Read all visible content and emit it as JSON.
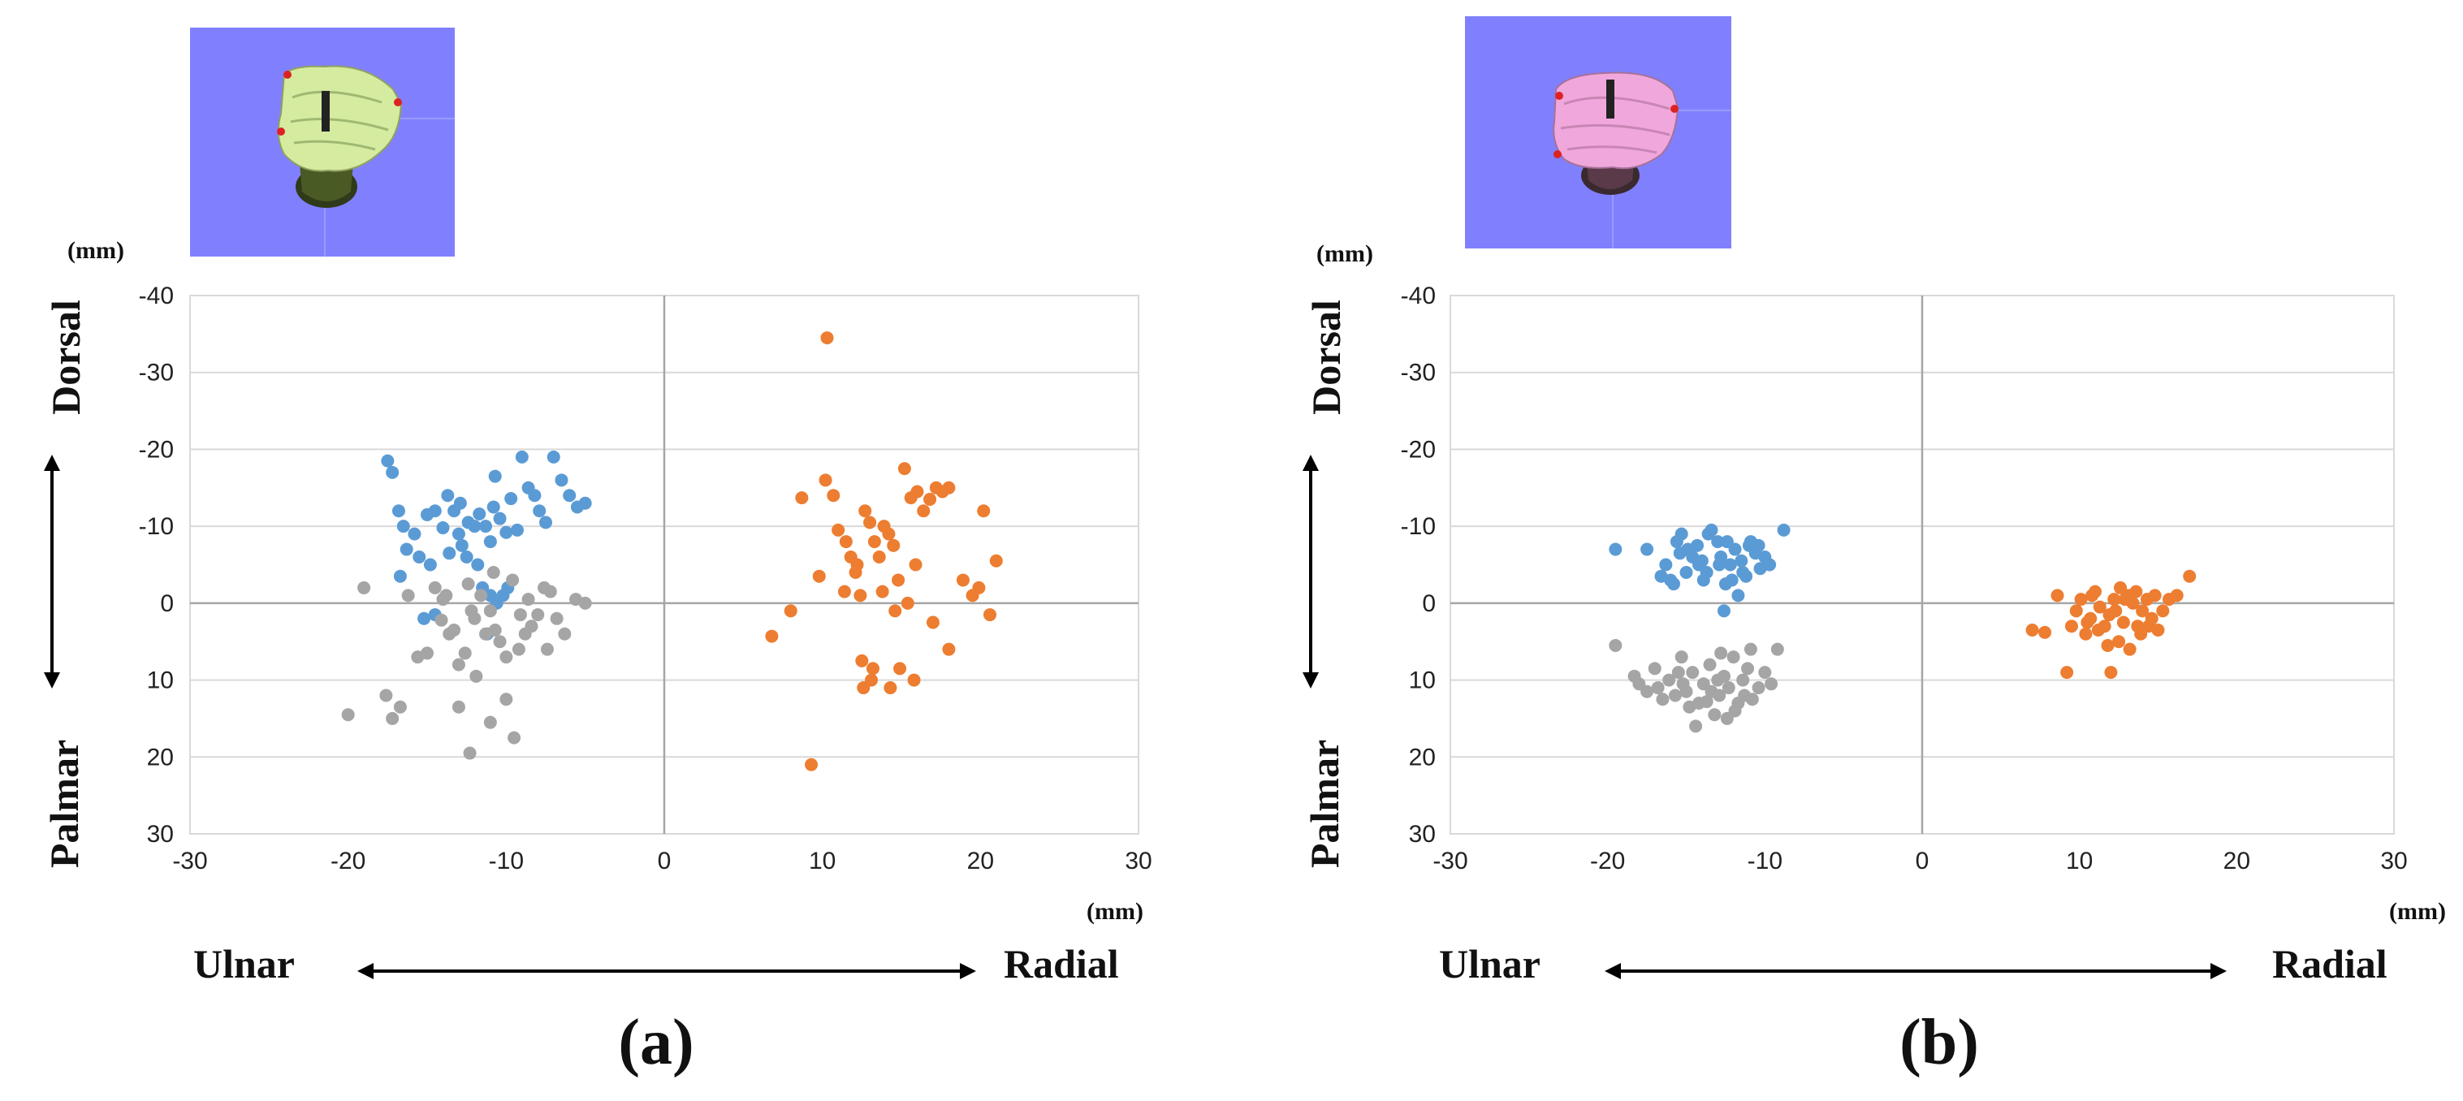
{
  "figure_captions": [
    "(a)",
    "(b)"
  ],
  "chart_data": [
    {
      "type": "scatter",
      "caption": "(a)",
      "thumbnail_background": "#8080ff",
      "thumbnail_bone_color": "#d4eba0",
      "x_unit": "(mm)",
      "y_unit": "(mm)",
      "x_direction_labels": {
        "left": "Ulnar",
        "right": "Radial"
      },
      "y_direction_labels": {
        "top": "Dorsal",
        "bottom": "Palmar"
      },
      "xlim": [
        -30,
        30
      ],
      "ylim": [
        -40,
        30
      ],
      "y_inverted": true,
      "xticks": [
        -30,
        -20,
        -10,
        0,
        10,
        20,
        30
      ],
      "yticks": [
        -40,
        -30,
        -20,
        -10,
        0,
        10,
        20,
        30
      ],
      "grid": true,
      "series": [
        {
          "name": "blue",
          "color": "#5b9bd5",
          "points": [
            [
              -17.5,
              -18.5
            ],
            [
              -17.2,
              -17
            ],
            [
              -16.8,
              -12
            ],
            [
              -16.5,
              -10
            ],
            [
              -15.8,
              -9
            ],
            [
              -16.3,
              -7
            ],
            [
              -15.5,
              -6
            ],
            [
              -15,
              -11.5
            ],
            [
              -14.5,
              -12
            ],
            [
              -14,
              -9.8
            ],
            [
              -13.7,
              -14
            ],
            [
              -13.3,
              -12
            ],
            [
              -13,
              -9
            ],
            [
              -12.8,
              -7.5
            ],
            [
              -12.4,
              -10.5
            ],
            [
              -12,
              -10
            ],
            [
              -11.7,
              -11.6
            ],
            [
              -11.3,
              -10
            ],
            [
              -11,
              -8
            ],
            [
              -10.7,
              -16.5
            ],
            [
              -10.4,
              -11
            ],
            [
              -10,
              -9.2
            ],
            [
              -9.7,
              -13.6
            ],
            [
              -9.3,
              -9.5
            ],
            [
              -9,
              -19
            ],
            [
              -8.6,
              -15
            ],
            [
              -8.2,
              -14
            ],
            [
              -7.9,
              -12
            ],
            [
              -7.5,
              -10.5
            ],
            [
              -7,
              -19
            ],
            [
              -6.5,
              -16
            ],
            [
              -6,
              -14
            ],
            [
              -5.5,
              -12.5
            ],
            [
              -5,
              -13
            ],
            [
              -14.8,
              -5
            ],
            [
              -13.6,
              -6.5
            ],
            [
              -12.5,
              -6
            ],
            [
              -11.5,
              -2
            ],
            [
              -11,
              -1
            ],
            [
              -10.6,
              0
            ],
            [
              -10.2,
              -1
            ],
            [
              -11.2,
              4
            ],
            [
              -14.5,
              1.5
            ],
            [
              -15.2,
              2
            ],
            [
              -16.7,
              -3.5
            ],
            [
              -11.8,
              -5
            ],
            [
              -12.9,
              -13
            ],
            [
              -10.8,
              -12.5
            ],
            [
              -9.9,
              -2
            ]
          ]
        },
        {
          "name": "orange",
          "color": "#ed7d31",
          "points": [
            [
              10.3,
              -34.5
            ],
            [
              6.8,
              4.3
            ],
            [
              8,
              1
            ],
            [
              8.7,
              -13.7
            ],
            [
              9.3,
              21
            ],
            [
              9.8,
              -3.5
            ],
            [
              10.2,
              -16
            ],
            [
              10.7,
              -14
            ],
            [
              11,
              -9.5
            ],
            [
              11.5,
              -8
            ],
            [
              11.8,
              -6
            ],
            [
              12.2,
              -5
            ],
            [
              12.4,
              -1
            ],
            [
              12.7,
              -12
            ],
            [
              13,
              -10.5
            ],
            [
              13.3,
              -8
            ],
            [
              13.6,
              -6
            ],
            [
              13.9,
              -10
            ],
            [
              14.2,
              -9
            ],
            [
              14.5,
              -7.5
            ],
            [
              14.8,
              -3
            ],
            [
              15.2,
              -17.5
            ],
            [
              15.6,
              -13.7
            ],
            [
              16,
              -14.5
            ],
            [
              16.4,
              -12
            ],
            [
              16.8,
              -13.5
            ],
            [
              17.2,
              -15
            ],
            [
              17.6,
              -14.5
            ],
            [
              18,
              -15
            ],
            [
              12.5,
              7.5
            ],
            [
              13.2,
              8.5
            ],
            [
              13.8,
              -1.5
            ],
            [
              14.6,
              1
            ],
            [
              15.4,
              0
            ],
            [
              15.9,
              -5
            ],
            [
              12.6,
              11
            ],
            [
              14.3,
              11
            ],
            [
              15.8,
              10
            ],
            [
              17,
              2.5
            ],
            [
              18,
              6
            ],
            [
              18.9,
              -3
            ],
            [
              19.5,
              -1
            ],
            [
              19.9,
              -2
            ],
            [
              20.2,
              -12
            ],
            [
              21,
              -5.5
            ],
            [
              20.6,
              1.5
            ],
            [
              13.1,
              10
            ],
            [
              14.9,
              8.5
            ],
            [
              11.4,
              -1.5
            ],
            [
              12.1,
              -4
            ]
          ]
        },
        {
          "name": "gray",
          "color": "#a5a5a5",
          "points": [
            [
              -20,
              14.5
            ],
            [
              -19,
              -2
            ],
            [
              -17.6,
              12
            ],
            [
              -17.2,
              15
            ],
            [
              -16.7,
              13.5
            ],
            [
              -16.2,
              -1
            ],
            [
              -15.6,
              7
            ],
            [
              -15,
              6.5
            ],
            [
              -14.5,
              -2
            ],
            [
              -14,
              -0.5
            ],
            [
              -13.6,
              4
            ],
            [
              -13.3,
              3.5
            ],
            [
              -13,
              8
            ],
            [
              -12.6,
              6.5
            ],
            [
              -12.4,
              -2.5
            ],
            [
              -12,
              2
            ],
            [
              -11.6,
              -1
            ],
            [
              -11.3,
              4
            ],
            [
              -11,
              1
            ],
            [
              -10.8,
              -4
            ],
            [
              -10.4,
              5
            ],
            [
              -10,
              7
            ],
            [
              -9.6,
              -3
            ],
            [
              -9.2,
              6
            ],
            [
              -8.8,
              4
            ],
            [
              -8.4,
              3
            ],
            [
              -8,
              1.5
            ],
            [
              -7.6,
              -2
            ],
            [
              -7.2,
              -1.5
            ],
            [
              -6.8,
              2
            ],
            [
              -6.3,
              4
            ],
            [
              -5,
              0
            ],
            [
              -13,
              13.5
            ],
            [
              -12.3,
              19.5
            ],
            [
              -11,
              15.5
            ],
            [
              -10,
              12.5
            ],
            [
              -9.5,
              17.5
            ],
            [
              -14.1,
              2.2
            ],
            [
              -11.9,
              9.5
            ],
            [
              -9.1,
              1.5
            ],
            [
              -7.4,
              6
            ],
            [
              -5.6,
              -0.5
            ],
            [
              -12.2,
              1
            ],
            [
              -10.7,
              3.5
            ],
            [
              -13.8,
              -1
            ],
            [
              -8.6,
              -0.5
            ]
          ]
        }
      ]
    },
    {
      "type": "scatter",
      "caption": "(b)",
      "thumbnail_background": "#8080ff",
      "thumbnail_bone_color": "#f0a8dc",
      "x_unit": "(mm)",
      "y_unit": "(mm)",
      "x_direction_labels": {
        "left": "Ulnar",
        "right": "Radial"
      },
      "y_direction_labels": {
        "top": "Dorsal",
        "bottom": "Palmar"
      },
      "xlim": [
        -30,
        30
      ],
      "ylim": [
        -40,
        30
      ],
      "y_inverted": true,
      "xticks": [
        -30,
        -20,
        -10,
        0,
        10,
        20,
        30
      ],
      "yticks": [
        -40,
        -30,
        -20,
        -10,
        0,
        10,
        20,
        30
      ],
      "grid": true,
      "series": [
        {
          "name": "blue",
          "color": "#5b9bd5",
          "points": [
            [
              -19.5,
              -7
            ],
            [
              -17.5,
              -7
            ],
            [
              -16.3,
              -5
            ],
            [
              -16,
              -3
            ],
            [
              -15.6,
              -8
            ],
            [
              -15.3,
              -9
            ],
            [
              -15,
              -4
            ],
            [
              -14.6,
              -6
            ],
            [
              -14.3,
              -7.5
            ],
            [
              -14,
              -5.5
            ],
            [
              -13.7,
              -4
            ],
            [
              -13.4,
              -9.5
            ],
            [
              -13,
              -8
            ],
            [
              -12.8,
              -6
            ],
            [
              -12.5,
              -2.5
            ],
            [
              -12.2,
              -5
            ],
            [
              -11.9,
              -7
            ],
            [
              -11.5,
              -5.5
            ],
            [
              -11.2,
              -3.5
            ],
            [
              -10.9,
              -8
            ],
            [
              -10.6,
              -6.5
            ],
            [
              -10.3,
              -4.5
            ],
            [
              -10,
              -6
            ],
            [
              -9.7,
              -5
            ],
            [
              -8.8,
              -9.5
            ],
            [
              -12.6,
              1
            ],
            [
              -11.7,
              -1
            ],
            [
              -15.8,
              -2.5
            ],
            [
              -13.6,
              -9
            ],
            [
              -12.1,
              -3
            ],
            [
              -14.9,
              -7
            ],
            [
              -11,
              -7.5
            ],
            [
              -12.9,
              -5
            ],
            [
              -13.9,
              -3
            ],
            [
              -10.4,
              -7.5
            ],
            [
              -14.2,
              -5
            ],
            [
              -16.6,
              -3.5
            ],
            [
              -15.4,
              -6.5
            ],
            [
              -12.4,
              -8
            ],
            [
              -11.4,
              -4
            ]
          ]
        },
        {
          "name": "orange",
          "color": "#ed7d31",
          "points": [
            [
              7,
              3.5
            ],
            [
              7.8,
              3.8
            ],
            [
              8.6,
              -1
            ],
            [
              9.2,
              9
            ],
            [
              9.8,
              1
            ],
            [
              10.1,
              -0.5
            ],
            [
              10.4,
              4
            ],
            [
              10.7,
              2
            ],
            [
              11,
              -1.5
            ],
            [
              11.3,
              0.5
            ],
            [
              11.6,
              3
            ],
            [
              11.9,
              1.5
            ],
            [
              12.2,
              -0.5
            ],
            [
              12.5,
              5
            ],
            [
              12.8,
              2.5
            ],
            [
              13.1,
              -1
            ],
            [
              13.4,
              0
            ],
            [
              13.7,
              3
            ],
            [
              14,
              1
            ],
            [
              14.3,
              -0.5
            ],
            [
              14.6,
              2
            ],
            [
              15,
              3.5
            ],
            [
              15.3,
              1
            ],
            [
              15.7,
              -0.5
            ],
            [
              16.2,
              -1
            ],
            [
              17,
              -3.5
            ],
            [
              12,
              9
            ],
            [
              13.2,
              6
            ],
            [
              12.6,
              -2
            ],
            [
              11.2,
              3.5
            ],
            [
              10.8,
              -1
            ],
            [
              13.9,
              4
            ],
            [
              12.9,
              -0.5
            ],
            [
              11.8,
              5.5
            ],
            [
              14.4,
              3
            ],
            [
              10.5,
              2.5
            ],
            [
              12.3,
              1
            ],
            [
              13.6,
              -1.5
            ],
            [
              9.5,
              3
            ],
            [
              14.8,
              -1
            ]
          ]
        },
        {
          "name": "gray",
          "color": "#a5a5a5",
          "points": [
            [
              -19.5,
              5.5
            ],
            [
              -18.3,
              9.5
            ],
            [
              -18,
              10.5
            ],
            [
              -17.5,
              11.5
            ],
            [
              -17,
              8.5
            ],
            [
              -16.5,
              12.5
            ],
            [
              -16.1,
              10
            ],
            [
              -15.7,
              12
            ],
            [
              -15.3,
              7
            ],
            [
              -15,
              11.5
            ],
            [
              -14.6,
              9
            ],
            [
              -14.2,
              13
            ],
            [
              -13.9,
              10.5
            ],
            [
              -13.5,
              8
            ],
            [
              -13.2,
              14.5
            ],
            [
              -12.9,
              12
            ],
            [
              -12.6,
              9.5
            ],
            [
              -12.3,
              11
            ],
            [
              -12,
              7
            ],
            [
              -11.7,
              13
            ],
            [
              -11.4,
              10
            ],
            [
              -11.1,
              8.5
            ],
            [
              -10.8,
              12.5
            ],
            [
              -10.4,
              11
            ],
            [
              -10,
              9
            ],
            [
              -9.6,
              10.5
            ],
            [
              -9.2,
              6
            ],
            [
              -14.4,
              16
            ],
            [
              -13.7,
              12.8
            ],
            [
              -12.8,
              6.5
            ],
            [
              -15.5,
              9
            ],
            [
              -11.9,
              14
            ],
            [
              -13,
              10
            ],
            [
              -16.8,
              11
            ],
            [
              -14.8,
              13.5
            ],
            [
              -10.9,
              6
            ],
            [
              -12.4,
              15
            ],
            [
              -11.3,
              12
            ],
            [
              -15.2,
              10.5
            ],
            [
              -13.4,
              11.5
            ]
          ]
        }
      ]
    }
  ]
}
